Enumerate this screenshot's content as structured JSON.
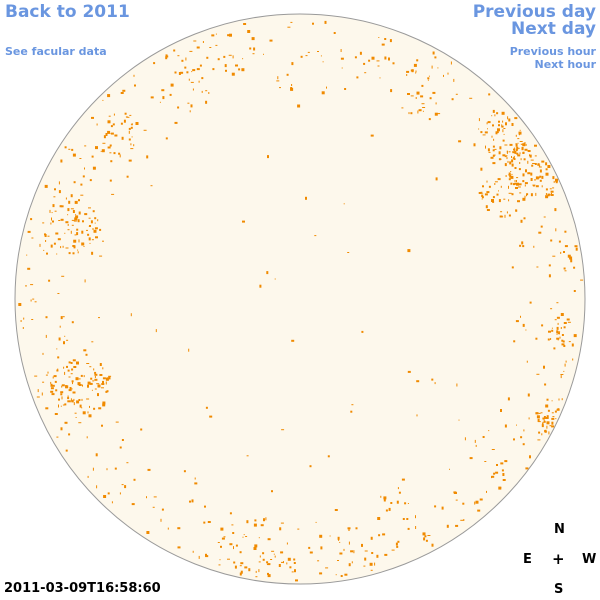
{
  "nav": {
    "back_label": "Back to 2011",
    "facular_label": "See facular data",
    "prev_day_label": "Previous day",
    "next_day_label": "Next day",
    "prev_hour_label": "Previous hour",
    "next_hour_label": "Next hour"
  },
  "timestamp": "2011-03-09T16:58:60",
  "compass": {
    "north": "N",
    "south": "S",
    "east": "E",
    "west": "W",
    "center": "+"
  },
  "colors": {
    "disk_fill": "#fdf8ec",
    "disk_outline": "#9a9a9a",
    "facula": "#f08a00",
    "link": "#6a96e0"
  }
}
